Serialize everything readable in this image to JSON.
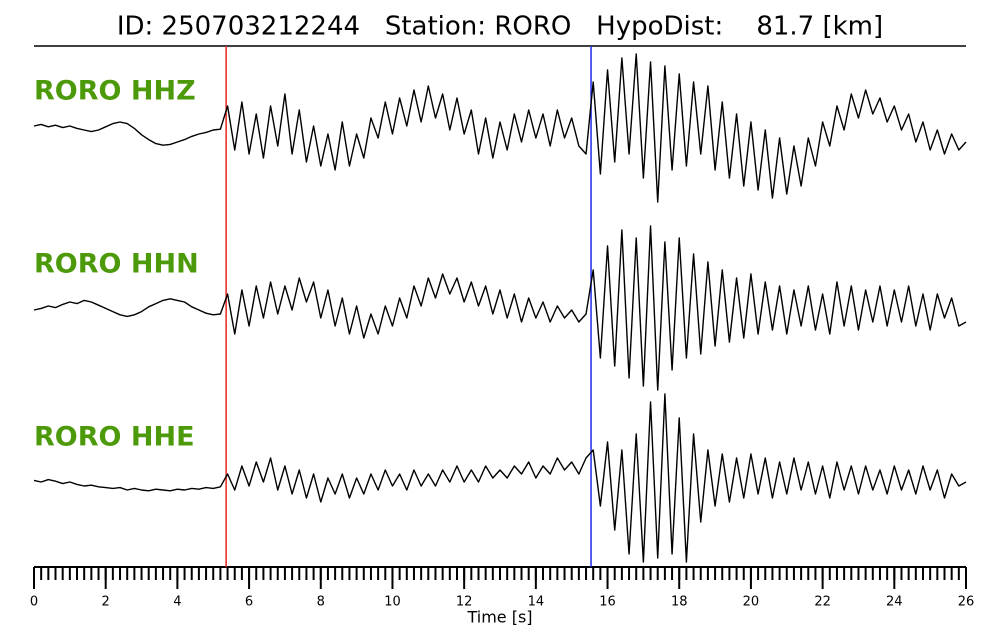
{
  "chart_data": {
    "type": "waveform",
    "title": "ID: 250703212244   Station: RORO   HypoDist:    81.7 [km]",
    "xlabel": "Time [s]",
    "xlim": [
      0,
      26
    ],
    "xticks": [
      0,
      2,
      4,
      6,
      8,
      10,
      12,
      14,
      16,
      18,
      20,
      22,
      24,
      26
    ],
    "xminorticks": [
      0,
      0.2,
      0.4,
      0.6,
      0.8,
      1,
      1.2,
      1.4,
      1.6,
      1.8,
      2,
      2.2,
      2.4,
      2.6,
      2.8,
      3,
      3.2,
      3.4,
      3.6,
      3.8,
      4,
      4.2,
      4.4,
      4.6,
      4.8,
      5,
      5.2,
      5.4,
      5.6,
      5.8,
      6,
      6.2,
      6.4,
      6.6,
      6.8,
      7,
      7.2,
      7.4,
      7.6,
      7.8,
      8,
      8.2,
      8.4,
      8.6,
      8.8,
      9,
      9.2,
      9.4,
      9.6,
      9.8,
      10,
      10.2,
      10.4,
      10.6,
      10.8,
      11,
      11.2,
      11.4,
      11.6,
      11.8,
      12,
      12.2,
      12.4,
      12.6,
      12.8,
      13,
      13.2,
      13.4,
      13.6,
      13.8,
      14,
      14.2,
      14.4,
      14.6,
      14.8,
      15,
      15.2,
      15.4,
      15.6,
      15.8,
      16,
      16.2,
      16.4,
      16.6,
      16.8,
      17,
      17.2,
      17.4,
      17.6,
      17.8,
      18,
      18.2,
      18.4,
      18.6,
      18.8,
      19,
      19.2,
      19.4,
      19.6,
      19.8,
      20,
      20.2,
      20.4,
      20.6,
      20.8,
      21,
      21.2,
      21.4,
      21.6,
      21.8,
      22,
      22.2,
      22.4,
      22.6,
      22.8,
      23,
      23.2,
      23.4,
      23.6,
      23.8,
      24,
      24.2,
      24.4,
      24.6,
      24.8,
      25,
      25.2,
      25.4,
      25.6,
      25.8,
      26
    ],
    "ylim": [
      -1,
      1
    ],
    "label_color": "#4c9a0a",
    "markers": [
      {
        "x": 5.36,
        "color": "#e8261f"
      },
      {
        "x": 15.54,
        "color": "#1f2be8"
      }
    ],
    "x": [
      0,
      0.2,
      0.4,
      0.6,
      0.8,
      1,
      1.2,
      1.4,
      1.6,
      1.8,
      2,
      2.2,
      2.4,
      2.6,
      2.8,
      3,
      3.2,
      3.4,
      3.6,
      3.8,
      4,
      4.2,
      4.4,
      4.6,
      4.8,
      5,
      5.2,
      5.4,
      5.6,
      5.8,
      6,
      6.2,
      6.4,
      6.6,
      6.8,
      7,
      7.2,
      7.4,
      7.6,
      7.8,
      8,
      8.2,
      8.4,
      8.6,
      8.8,
      9,
      9.2,
      9.4,
      9.6,
      9.8,
      10,
      10.2,
      10.4,
      10.6,
      10.8,
      11,
      11.2,
      11.4,
      11.6,
      11.8,
      12,
      12.2,
      12.4,
      12.6,
      12.8,
      13,
      13.2,
      13.4,
      13.6,
      13.8,
      14,
      14.2,
      14.4,
      14.6,
      14.8,
      15,
      15.2,
      15.4,
      15.6,
      15.8,
      16,
      16.2,
      16.4,
      16.6,
      16.8,
      17,
      17.2,
      17.4,
      17.6,
      17.8,
      18,
      18.2,
      18.4,
      18.6,
      18.8,
      19,
      19.2,
      19.4,
      19.6,
      19.8,
      20,
      20.2,
      20.4,
      20.6,
      20.8,
      21,
      21.2,
      21.4,
      21.6,
      21.8,
      22,
      22.2,
      22.4,
      22.6,
      22.8,
      23,
      23.2,
      23.4,
      23.6,
      23.8,
      24,
      24.2,
      24.4,
      24.6,
      24.8,
      25,
      25.2,
      25.4,
      25.6,
      25.8,
      26
    ],
    "series": [
      {
        "name": "RORO HHZ",
        "color": "#000000",
        "values": [
          0.05,
          0.07,
          0.04,
          0.06,
          0.03,
          0.05,
          0.02,
          0.0,
          -0.02,
          0.0,
          0.04,
          0.08,
          0.1,
          0.08,
          0.02,
          -0.06,
          -0.12,
          -0.17,
          -0.19,
          -0.18,
          -0.15,
          -0.12,
          -0.08,
          -0.05,
          -0.03,
          0.0,
          0.01,
          0.3,
          -0.25,
          0.35,
          -0.3,
          0.2,
          -0.35,
          0.3,
          -0.2,
          0.45,
          -0.3,
          0.25,
          -0.4,
          0.05,
          -0.45,
          -0.05,
          -0.5,
          0.1,
          -0.45,
          -0.05,
          -0.35,
          0.15,
          -0.1,
          0.35,
          -0.05,
          0.4,
          0.05,
          0.5,
          0.1,
          0.55,
          0.15,
          0.45,
          0.0,
          0.4,
          -0.05,
          0.25,
          -0.3,
          0.15,
          -0.35,
          0.1,
          -0.25,
          0.2,
          -0.15,
          0.25,
          -0.1,
          0.2,
          -0.2,
          0.25,
          -0.1,
          0.15,
          -0.2,
          -0.3,
          0.6,
          -0.55,
          0.75,
          -0.4,
          0.9,
          -0.3,
          0.95,
          -0.6,
          0.85,
          -0.9,
          0.8,
          -0.5,
          0.7,
          -0.45,
          0.6,
          -0.3,
          0.55,
          -0.5,
          0.35,
          -0.6,
          0.2,
          -0.7,
          0.1,
          -0.75,
          0.0,
          -0.85,
          -0.1,
          -0.8,
          -0.2,
          -0.7,
          -0.1,
          -0.45,
          0.1,
          -0.2,
          0.3,
          0.0,
          0.45,
          0.15,
          0.5,
          0.2,
          0.4,
          0.1,
          0.3,
          0.0,
          0.2,
          -0.15,
          0.1,
          -0.25,
          0.0,
          -0.3,
          -0.05,
          -0.25,
          -0.15
        ]
      },
      {
        "name": "RORO HHN",
        "color": "#000000",
        "values": [
          0.0,
          0.02,
          0.05,
          0.03,
          0.07,
          0.1,
          0.08,
          0.12,
          0.1,
          0.06,
          0.02,
          -0.02,
          -0.06,
          -0.08,
          -0.06,
          -0.02,
          0.04,
          0.08,
          0.12,
          0.14,
          0.12,
          0.1,
          0.04,
          0.0,
          -0.04,
          -0.06,
          -0.05,
          0.2,
          -0.3,
          0.25,
          -0.2,
          0.3,
          -0.1,
          0.35,
          -0.05,
          0.3,
          0.0,
          0.4,
          0.1,
          0.35,
          -0.1,
          0.25,
          -0.2,
          0.15,
          -0.3,
          0.05,
          -0.35,
          -0.05,
          -0.3,
          0.05,
          -0.2,
          0.15,
          -0.1,
          0.3,
          0.05,
          0.4,
          0.15,
          0.45,
          0.2,
          0.4,
          0.1,
          0.35,
          0.05,
          0.3,
          -0.05,
          0.25,
          -0.1,
          0.2,
          -0.15,
          0.15,
          -0.1,
          0.1,
          -0.15,
          0.05,
          -0.1,
          0.0,
          -0.15,
          -0.05,
          0.5,
          -0.6,
          0.8,
          -0.7,
          1.0,
          -0.85,
          0.9,
          -0.95,
          1.05,
          -1.0,
          0.85,
          -0.75,
          0.9,
          -0.6,
          0.7,
          -0.55,
          0.6,
          -0.45,
          0.5,
          -0.4,
          0.4,
          -0.35,
          0.45,
          -0.3,
          0.35,
          -0.25,
          0.3,
          -0.3,
          0.25,
          -0.2,
          0.3,
          -0.25,
          0.2,
          -0.3,
          0.35,
          -0.2,
          0.3,
          -0.25,
          0.25,
          -0.15,
          0.3,
          -0.2,
          0.25,
          -0.15,
          0.3,
          -0.2,
          0.2,
          -0.25,
          0.2,
          -0.1,
          0.15,
          -0.2,
          -0.15
        ]
      },
      {
        "name": "RORO HHE",
        "color": "#000000",
        "values": [
          0.02,
          0.0,
          0.03,
          0.01,
          -0.02,
          0.0,
          -0.03,
          -0.05,
          -0.04,
          -0.06,
          -0.07,
          -0.08,
          -0.07,
          -0.1,
          -0.08,
          -0.1,
          -0.11,
          -0.09,
          -0.1,
          -0.11,
          -0.09,
          -0.1,
          -0.08,
          -0.09,
          -0.07,
          -0.08,
          -0.06,
          0.1,
          -0.1,
          0.2,
          -0.05,
          0.25,
          0.0,
          0.3,
          -0.1,
          0.2,
          -0.15,
          0.15,
          -0.2,
          0.1,
          -0.25,
          0.05,
          -0.15,
          0.1,
          -0.2,
          0.05,
          -0.15,
          0.1,
          -0.1,
          0.15,
          -0.05,
          0.1,
          -0.1,
          0.15,
          -0.05,
          0.1,
          -0.05,
          0.15,
          0.0,
          0.2,
          0.0,
          0.15,
          0.0,
          0.2,
          0.05,
          0.15,
          0.05,
          0.2,
          0.1,
          0.25,
          0.05,
          0.2,
          0.1,
          0.3,
          0.15,
          0.25,
          0.1,
          0.3,
          0.4,
          -0.3,
          0.5,
          -0.6,
          0.4,
          -0.9,
          0.6,
          -1.0,
          1.0,
          -0.95,
          1.1,
          -0.9,
          0.8,
          -1.0,
          0.6,
          -0.5,
          0.4,
          -0.3,
          0.35,
          -0.25,
          0.3,
          -0.2,
          0.35,
          -0.15,
          0.3,
          -0.2,
          0.25,
          -0.15,
          0.3,
          -0.1,
          0.25,
          -0.15,
          0.2,
          -0.2,
          0.25,
          -0.1,
          0.2,
          -0.15,
          0.2,
          -0.1,
          0.15,
          -0.15,
          0.2,
          -0.1,
          0.15,
          -0.15,
          0.2,
          -0.1,
          0.15,
          -0.2,
          0.1,
          -0.05,
          0.0
        ]
      }
    ]
  }
}
